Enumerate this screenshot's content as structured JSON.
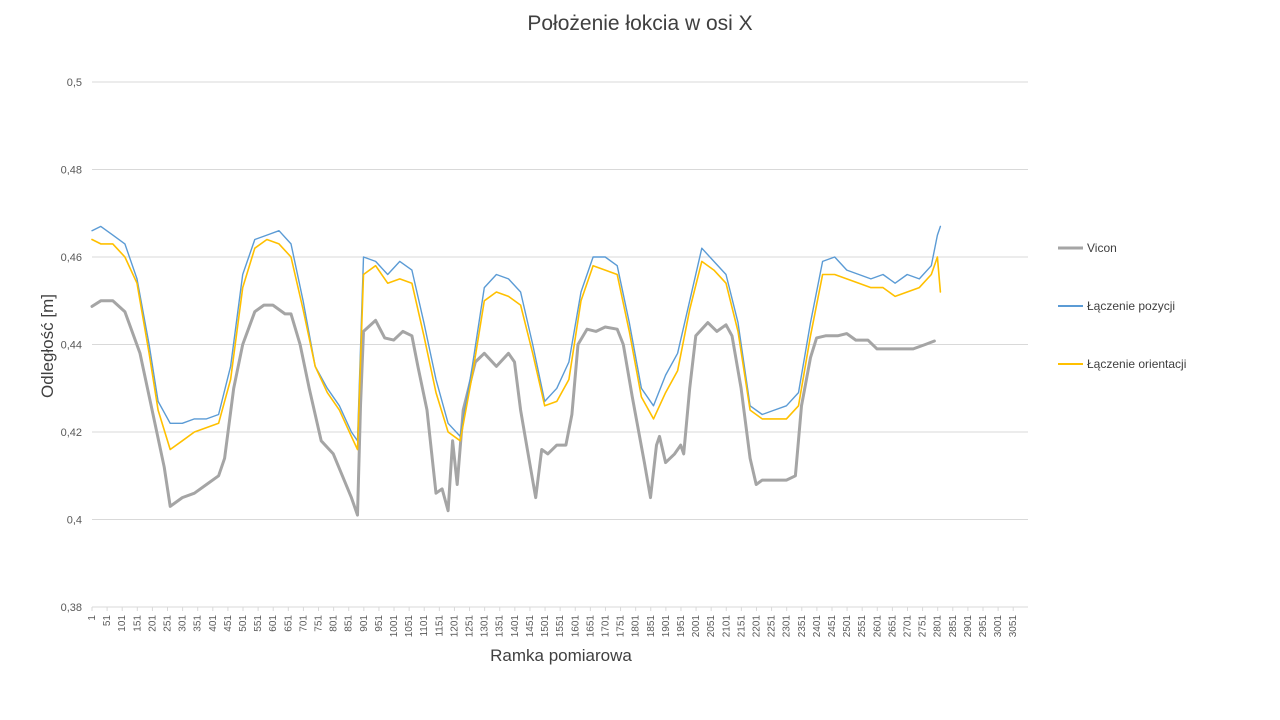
{
  "chart_data": {
    "type": "line",
    "title": "Położenie łokcia w osi X",
    "xlabel": "Ramka pomiarowa",
    "ylabel": "Odległość [m]",
    "ylim": [
      0.38,
      0.5
    ],
    "xlim": [
      1,
      3100
    ],
    "yticks": [
      "0,38",
      "0,4",
      "0,42",
      "0,44",
      "0,46",
      "0,48",
      "0,5"
    ],
    "ytick_values": [
      0.38,
      0.4,
      0.42,
      0.44,
      0.46,
      0.48,
      0.5
    ],
    "xticks": [
      "1",
      "51",
      "101",
      "151",
      "201",
      "251",
      "301",
      "351",
      "401",
      "451",
      "501",
      "551",
      "601",
      "651",
      "701",
      "751",
      "801",
      "851",
      "901",
      "951",
      "1001",
      "1051",
      "1101",
      "1151",
      "1201",
      "1251",
      "1301",
      "1351",
      "1401",
      "1451",
      "1501",
      "1551",
      "1601",
      "1651",
      "1701",
      "1751",
      "1801",
      "1851",
      "1901",
      "1951",
      "2001",
      "2051",
      "2101",
      "2151",
      "2201",
      "2251",
      "2301",
      "2351",
      "2401",
      "2451",
      "2501",
      "2551",
      "2601",
      "2651",
      "2701",
      "2751",
      "2801",
      "2851",
      "2901",
      "2951",
      "3001",
      "3051"
    ],
    "grid": true,
    "legend_position": "right",
    "series": [
      {
        "name": "Vicon",
        "color": "#a5a5a5",
        "x": [
          1,
          30,
          70,
          110,
          160,
          200,
          240,
          260,
          300,
          340,
          380,
          420,
          440,
          470,
          500,
          540,
          570,
          600,
          640,
          660,
          690,
          720,
          760,
          800,
          860,
          880,
          890,
          900,
          940,
          970,
          1000,
          1030,
          1060,
          1080,
          1110,
          1140,
          1160,
          1180,
          1195,
          1210,
          1230,
          1270,
          1300,
          1340,
          1380,
          1400,
          1420,
          1440,
          1470,
          1490,
          1510,
          1540,
          1570,
          1590,
          1610,
          1640,
          1670,
          1700,
          1740,
          1760,
          1790,
          1830,
          1850,
          1870,
          1880,
          1900,
          1930,
          1950,
          1960,
          1980,
          2000,
          2040,
          2070,
          2100,
          2120,
          2150,
          2180,
          2200,
          2220,
          2260,
          2300,
          2330,
          2350,
          2380,
          2400,
          2430,
          2470,
          2500,
          2530,
          2570,
          2600,
          2640,
          2680,
          2720,
          2760,
          2790
        ],
        "values": [
          0.4487,
          0.45,
          0.45,
          0.4475,
          0.438,
          0.425,
          0.412,
          0.403,
          0.405,
          0.406,
          0.408,
          0.41,
          0.414,
          0.43,
          0.44,
          0.4475,
          0.449,
          0.449,
          0.447,
          0.447,
          0.44,
          0.43,
          0.418,
          0.415,
          0.405,
          0.401,
          0.426,
          0.443,
          0.4455,
          0.4415,
          0.441,
          0.443,
          0.442,
          0.435,
          0.425,
          0.406,
          0.407,
          0.402,
          0.418,
          0.408,
          0.425,
          0.436,
          0.438,
          0.435,
          0.438,
          0.436,
          0.425,
          0.417,
          0.405,
          0.416,
          0.415,
          0.417,
          0.417,
          0.424,
          0.44,
          0.4435,
          0.443,
          0.444,
          0.4435,
          0.44,
          0.428,
          0.413,
          0.405,
          0.417,
          0.419,
          0.413,
          0.415,
          0.417,
          0.415,
          0.43,
          0.442,
          0.445,
          0.443,
          0.4445,
          0.442,
          0.43,
          0.414,
          0.408,
          0.409,
          0.409,
          0.409,
          0.41,
          0.426,
          0.437,
          0.4415,
          0.442,
          0.442,
          0.4425,
          0.441,
          0.441,
          0.439,
          0.439,
          0.439,
          0.439,
          0.44,
          0.4408
        ]
      },
      {
        "name": "Łączenie pozycji",
        "color": "#5b9bd5",
        "x": [
          1,
          30,
          70,
          110,
          150,
          190,
          220,
          260,
          300,
          340,
          380,
          420,
          460,
          500,
          540,
          580,
          620,
          660,
          700,
          740,
          780,
          820,
          860,
          880,
          900,
          940,
          980,
          1020,
          1060,
          1100,
          1140,
          1180,
          1220,
          1260,
          1300,
          1340,
          1380,
          1420,
          1460,
          1500,
          1540,
          1580,
          1620,
          1660,
          1700,
          1740,
          1780,
          1820,
          1860,
          1900,
          1940,
          1980,
          2020,
          2060,
          2100,
          2140,
          2180,
          2220,
          2260,
          2300,
          2340,
          2380,
          2420,
          2460,
          2500,
          2540,
          2580,
          2620,
          2660,
          2700,
          2740,
          2780,
          2800,
          2810
        ],
        "values": [
          0.466,
          0.467,
          0.465,
          0.463,
          0.455,
          0.44,
          0.427,
          0.422,
          0.422,
          0.423,
          0.423,
          0.424,
          0.435,
          0.456,
          0.464,
          0.465,
          0.466,
          0.463,
          0.45,
          0.435,
          0.43,
          0.426,
          0.42,
          0.418,
          0.46,
          0.459,
          0.456,
          0.459,
          0.457,
          0.445,
          0.432,
          0.422,
          0.419,
          0.435,
          0.453,
          0.456,
          0.455,
          0.452,
          0.44,
          0.427,
          0.43,
          0.436,
          0.452,
          0.46,
          0.46,
          0.458,
          0.445,
          0.43,
          0.426,
          0.433,
          0.438,
          0.45,
          0.462,
          0.459,
          0.456,
          0.445,
          0.426,
          0.424,
          0.425,
          0.426,
          0.429,
          0.445,
          0.459,
          0.46,
          0.457,
          0.456,
          0.455,
          0.456,
          0.454,
          0.456,
          0.455,
          0.458,
          0.465,
          0.467
        ]
      },
      {
        "name": "Łączenie orientacji",
        "color": "#ffc000",
        "x": [
          1,
          30,
          70,
          110,
          150,
          190,
          220,
          260,
          300,
          340,
          380,
          420,
          460,
          500,
          540,
          580,
          620,
          660,
          700,
          740,
          780,
          820,
          860,
          880,
          900,
          940,
          980,
          1020,
          1060,
          1100,
          1140,
          1180,
          1220,
          1260,
          1300,
          1340,
          1380,
          1420,
          1460,
          1500,
          1540,
          1580,
          1620,
          1660,
          1700,
          1740,
          1780,
          1820,
          1860,
          1900,
          1940,
          1980,
          2020,
          2060,
          2100,
          2140,
          2180,
          2220,
          2260,
          2300,
          2340,
          2380,
          2420,
          2460,
          2500,
          2540,
          2580,
          2620,
          2660,
          2700,
          2740,
          2780,
          2800,
          2810
        ],
        "values": [
          0.464,
          0.463,
          0.463,
          0.46,
          0.454,
          0.438,
          0.425,
          0.416,
          0.418,
          0.42,
          0.421,
          0.422,
          0.432,
          0.453,
          0.462,
          0.464,
          0.463,
          0.46,
          0.448,
          0.435,
          0.429,
          0.425,
          0.419,
          0.416,
          0.456,
          0.458,
          0.454,
          0.455,
          0.454,
          0.442,
          0.429,
          0.42,
          0.418,
          0.433,
          0.45,
          0.452,
          0.451,
          0.449,
          0.438,
          0.426,
          0.427,
          0.432,
          0.45,
          0.458,
          0.457,
          0.456,
          0.443,
          0.428,
          0.423,
          0.429,
          0.434,
          0.448,
          0.459,
          0.457,
          0.454,
          0.443,
          0.425,
          0.423,
          0.423,
          0.423,
          0.426,
          0.442,
          0.456,
          0.456,
          0.455,
          0.454,
          0.453,
          0.453,
          0.451,
          0.452,
          0.453,
          0.456,
          0.46,
          0.452
        ]
      }
    ]
  }
}
